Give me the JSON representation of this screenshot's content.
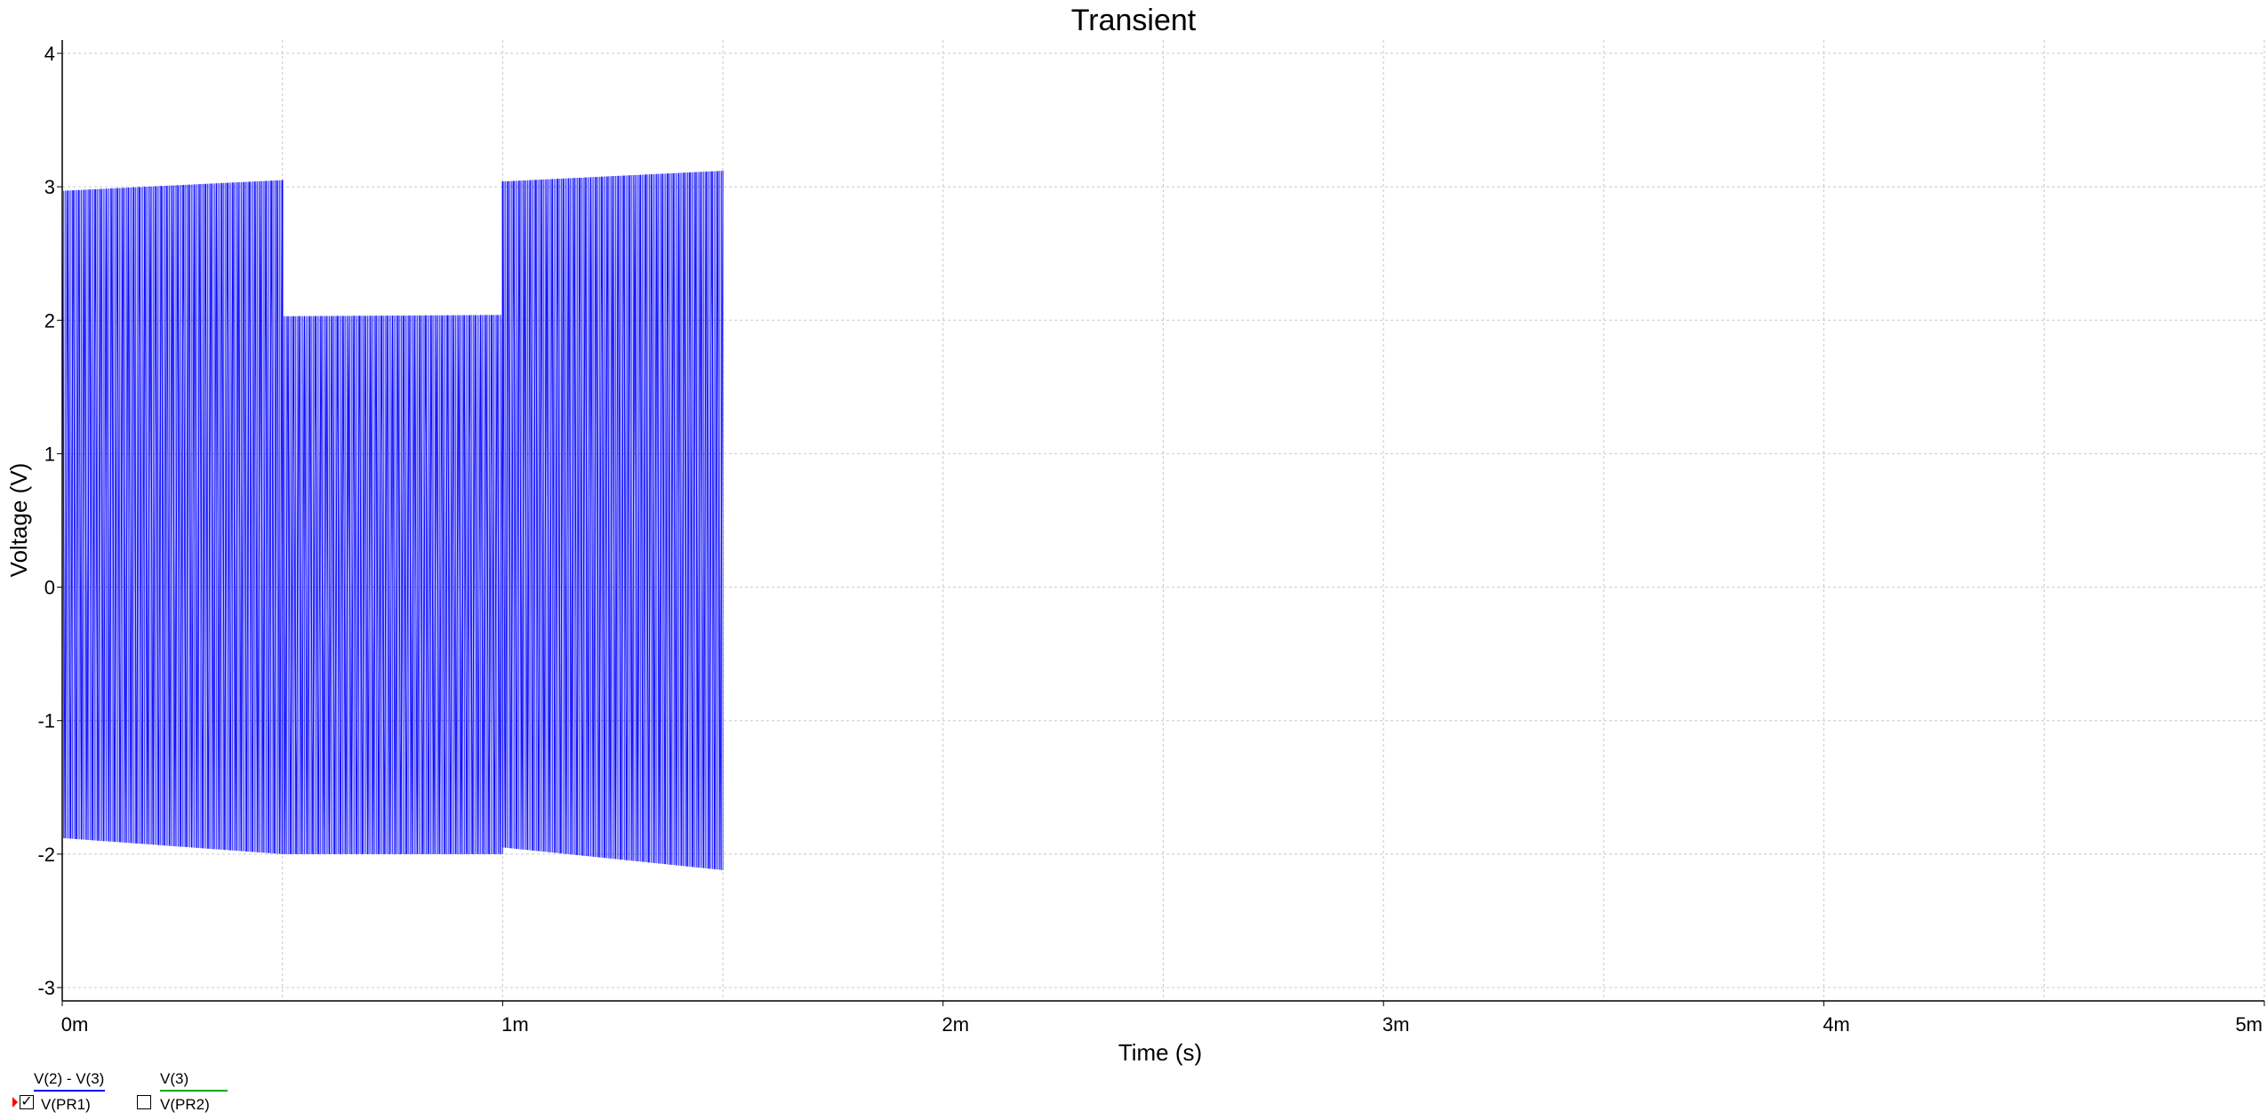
{
  "chart_data": {
    "type": "line",
    "title": "Transient",
    "xlabel": "Time (s)",
    "ylabel": "Voltage (V)",
    "xlim": [
      0,
      0.005
    ],
    "ylim": [
      -3.1,
      4.1
    ],
    "x_ticks": [
      {
        "value": 0,
        "label": "0m"
      },
      {
        "value": 0.001,
        "label": "1m"
      },
      {
        "value": 0.002,
        "label": "2m"
      },
      {
        "value": 0.003,
        "label": "3m"
      },
      {
        "value": 0.004,
        "label": "4m"
      },
      {
        "value": 0.005,
        "label": "5m"
      }
    ],
    "y_ticks": [
      {
        "value": -3,
        "label": "-3"
      },
      {
        "value": -2,
        "label": "-2"
      },
      {
        "value": -1,
        "label": "-1"
      },
      {
        "value": 0,
        "label": "0"
      },
      {
        "value": 1,
        "label": "1"
      },
      {
        "value": 2,
        "label": "2"
      },
      {
        "value": 3,
        "label": "3"
      },
      {
        "value": 4,
        "label": "4"
      }
    ],
    "grid": true,
    "series": [
      {
        "name": "V(2) - V(3)",
        "probe": "V(PR1)",
        "color": "#0000ff",
        "visible": true,
        "signal": "oscillating",
        "segments": [
          {
            "t_start": 0.0,
            "t_end": 0.0005,
            "max_start": 2.97,
            "max_end": 3.05,
            "min_start": -1.88,
            "min_end": -2.0
          },
          {
            "t_start": 0.0005,
            "t_end": 0.001,
            "max_start": 2.03,
            "max_end": 2.04,
            "min_start": -2.0,
            "min_end": -2.0
          },
          {
            "t_start": 0.001,
            "t_end": 0.0015,
            "max_start": 3.04,
            "max_end": 3.12,
            "min_start": -1.95,
            "min_end": -2.12
          }
        ]
      },
      {
        "name": "V(3)",
        "probe": "V(PR2)",
        "color": "#00aa00",
        "visible": false
      }
    ]
  }
}
